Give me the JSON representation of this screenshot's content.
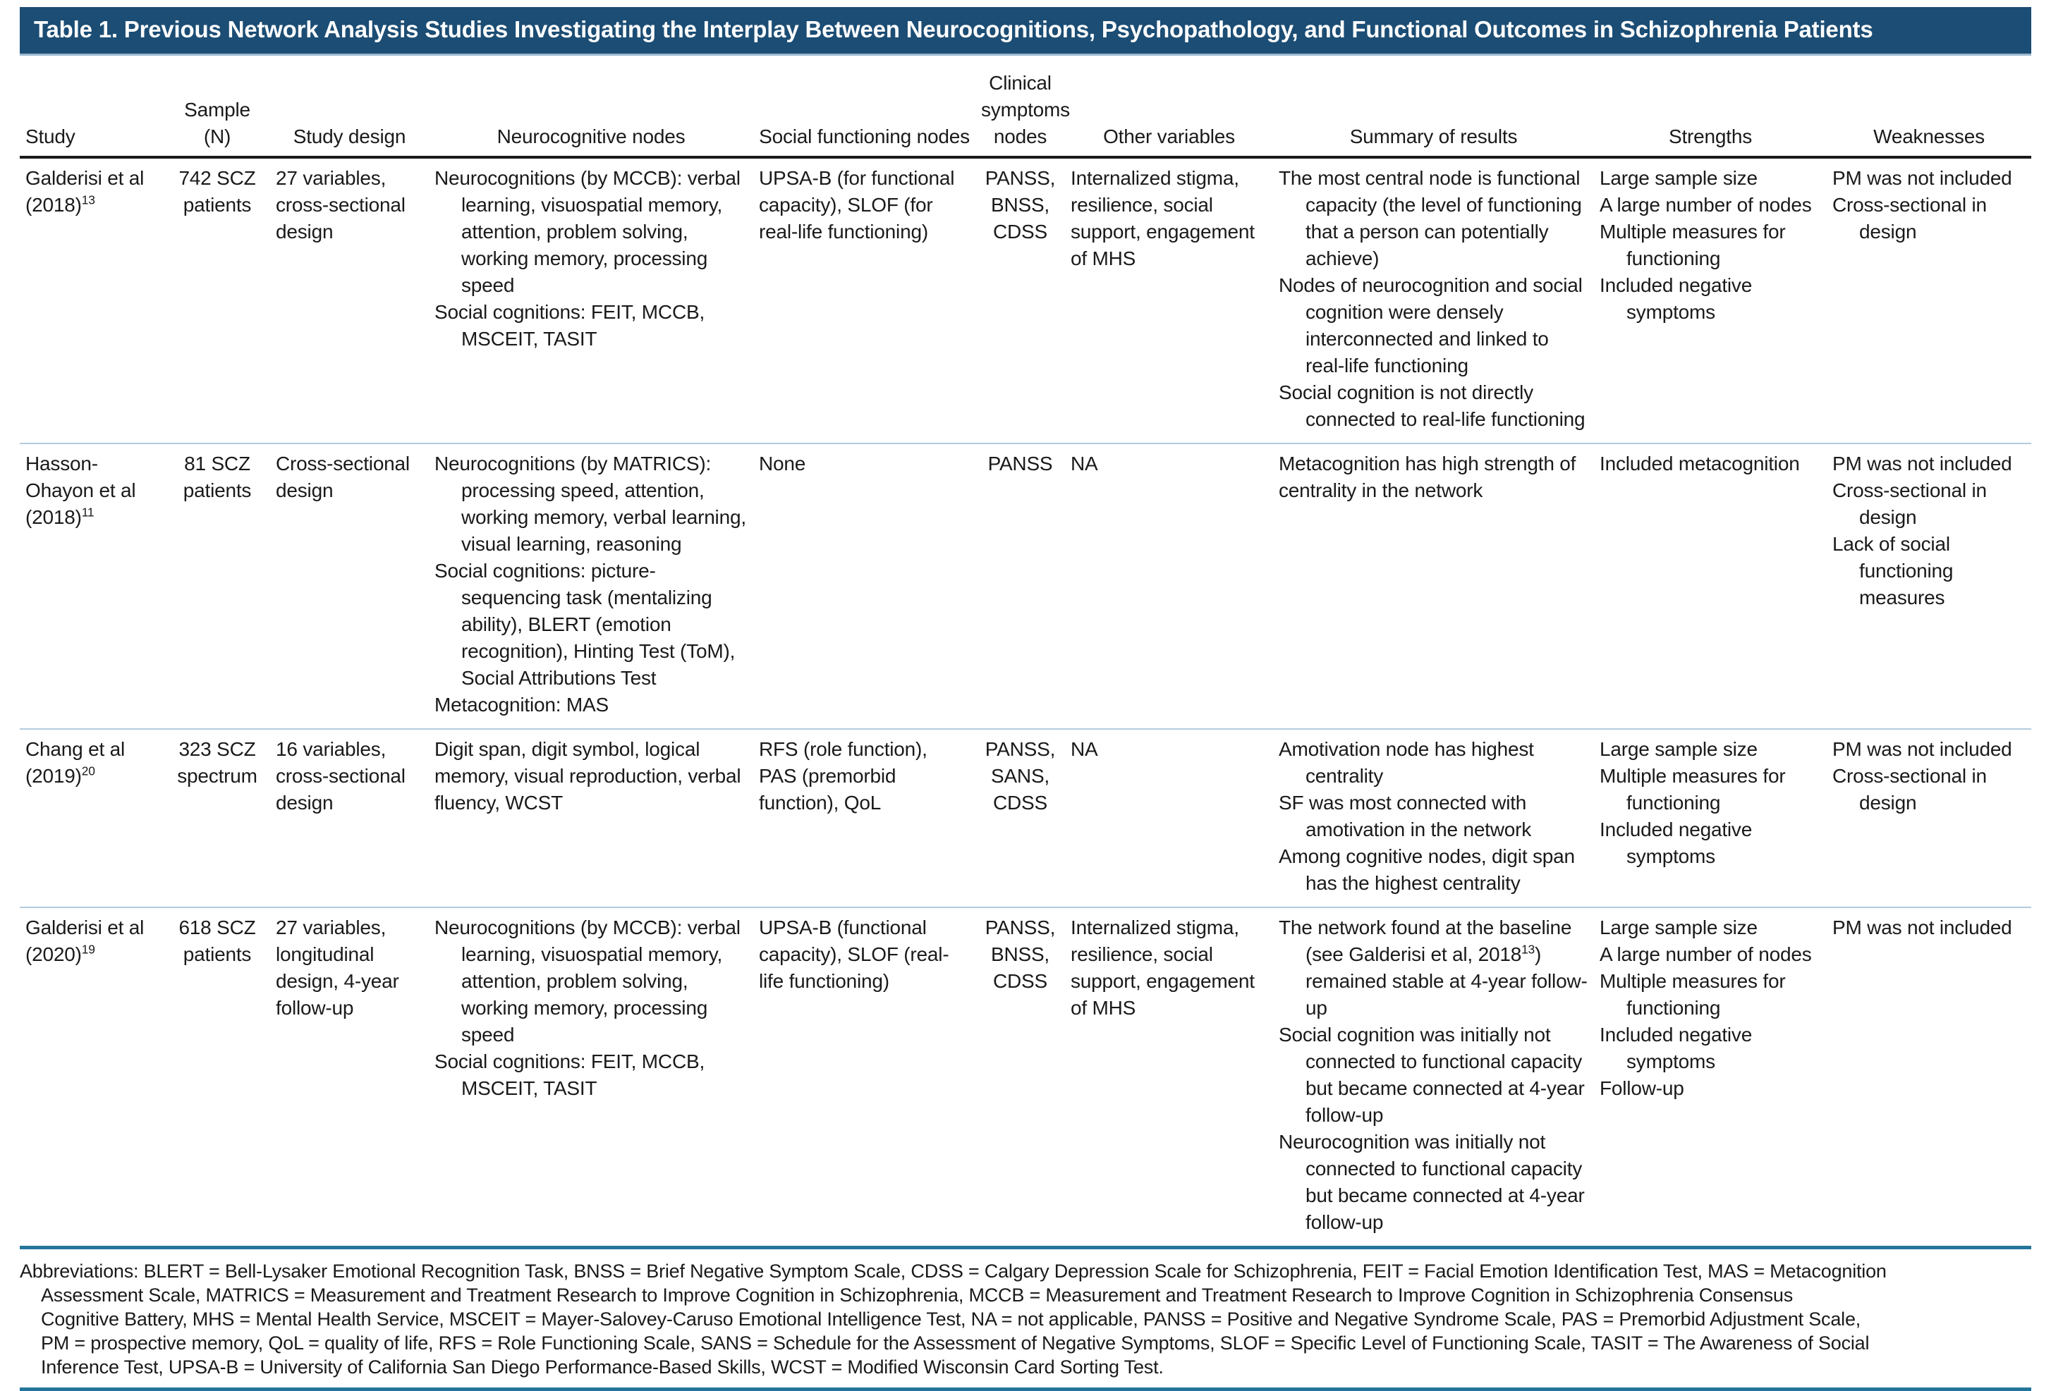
{
  "title": "Table 1. Previous Network Analysis Studies Investigating the Interplay Between Neurocognitions, Psychopathology, and Functional Outcomes in Schizophrenia Patients",
  "colors": {
    "title_bar_bg": "#1C4D74",
    "title_text": "#FFFFFF",
    "header_rule": "#1A1A1A",
    "row_rule": "#B3CBDF",
    "table_end_rule": "#24759C",
    "body_text": "#1A1A1A"
  },
  "columns": [
    {
      "label": "Study",
      "align": "left"
    },
    {
      "label": "Sample (N)",
      "align": "center"
    },
    {
      "label": "Study design",
      "align": "center"
    },
    {
      "label": "Neurocognitive nodes",
      "align": "center"
    },
    {
      "label": "Social functioning nodes",
      "align": "center"
    },
    {
      "label": "Clinical symptoms nodes",
      "align": "center"
    },
    {
      "label": "Other variables",
      "align": "center"
    },
    {
      "label": "Summary of results",
      "align": "center"
    },
    {
      "label": "Strengths",
      "align": "center"
    },
    {
      "label": "Weaknesses",
      "align": "center"
    }
  ],
  "rows": [
    {
      "cells": [
        {
          "items": [
            "Galderisi et al",
            "(2018)^{13}"
          ]
        },
        {
          "items": [
            "742 SCZ patients"
          ],
          "align": "center"
        },
        {
          "items": [
            "27 variables, cross-sectional design"
          ]
        },
        {
          "items": [
            "Neurocognitions (by MCCB): verbal learning, visuospatial memory, attention, problem solving, working memory, processing speed",
            "Social cognitions: FEIT, MCCB, MSCEIT, TASIT"
          ],
          "hang": true
        },
        {
          "items": [
            "UPSA-B (for functional capacity), SLOF (for real-life functioning)"
          ]
        },
        {
          "items": [
            "PANSS, BNSS, CDSS"
          ],
          "align": "center"
        },
        {
          "items": [
            "Internalized stigma, resilience, social support, engagement of MHS"
          ]
        },
        {
          "items": [
            "The most central node is functional capacity (the level of functioning that a person can potentially achieve)",
            "Nodes of neurocognition and social cognition were densely interconnected and linked to real-life functioning",
            "Social cognition is not directly connected to real-life functioning"
          ],
          "hang": true
        },
        {
          "items": [
            "Large sample size",
            "A large number of nodes",
            "Multiple measures for functioning",
            "Included negative symptoms"
          ],
          "hang": true
        },
        {
          "items": [
            "PM was not included",
            "Cross-sectional in design"
          ],
          "hang": true
        }
      ]
    },
    {
      "cells": [
        {
          "items": [
            "Hasson-",
            "Ohayon et al",
            "(2018)^{11}"
          ]
        },
        {
          "items": [
            "81 SCZ patients"
          ],
          "align": "center"
        },
        {
          "items": [
            "Cross-sectional design"
          ]
        },
        {
          "items": [
            "Neurocognitions (by MATRICS): processing speed, attention, working memory, verbal learning, visual learning, reasoning",
            "Social cognitions: picture-sequencing task (mentalizing ability), BLERT (emotion recognition), Hinting Test (ToM), Social Attributions Test",
            "Metacognition: MAS"
          ],
          "hang": true
        },
        {
          "items": [
            "None"
          ]
        },
        {
          "items": [
            "PANSS"
          ],
          "align": "center"
        },
        {
          "items": [
            "NA"
          ]
        },
        {
          "items": [
            "Metacognition has high strength of centrality in the network"
          ]
        },
        {
          "items": [
            "Included metacognition"
          ]
        },
        {
          "items": [
            "PM was not included",
            "Cross-sectional in design",
            "Lack of social functioning measures"
          ],
          "hang": true
        }
      ]
    },
    {
      "cells": [
        {
          "items": [
            "Chang et al",
            "(2019)^{20}"
          ]
        },
        {
          "items": [
            "323 SCZ spectrum"
          ],
          "align": "center"
        },
        {
          "items": [
            "16 variables, cross-sectional design"
          ]
        },
        {
          "items": [
            "Digit span, digit symbol, logical memory, visual reproduction, verbal fluency, WCST"
          ]
        },
        {
          "items": [
            "RFS (role function), PAS (premorbid function), QoL"
          ]
        },
        {
          "items": [
            "PANSS, SANS, CDSS"
          ],
          "align": "center"
        },
        {
          "items": [
            "NA"
          ]
        },
        {
          "items": [
            "Amotivation node has highest centrality",
            "SF was most connected with amotivation in the network",
            "Among cognitive nodes, digit span has the highest centrality"
          ],
          "hang": true
        },
        {
          "items": [
            "Large sample size",
            "Multiple measures for functioning",
            "Included negative symptoms"
          ],
          "hang": true
        },
        {
          "items": [
            "PM was not included",
            "Cross-sectional in design"
          ],
          "hang": true
        }
      ]
    },
    {
      "cells": [
        {
          "items": [
            "Galderisi et al",
            "(2020)^{19}"
          ]
        },
        {
          "items": [
            "618 SCZ patients"
          ],
          "align": "center"
        },
        {
          "items": [
            "27 variables, longitudinal design, 4-year follow-up"
          ]
        },
        {
          "items": [
            "Neurocognitions (by MCCB): verbal learning, visuospatial memory, attention, problem solving, working memory, processing speed",
            "Social cognitions: FEIT, MCCB, MSCEIT, TASIT"
          ],
          "hang": true
        },
        {
          "items": [
            "UPSA-B (functional capacity), SLOF (real-life functioning)"
          ]
        },
        {
          "items": [
            "PANSS, BNSS, CDSS"
          ],
          "align": "center"
        },
        {
          "items": [
            "Internalized stigma, resilience, social support, engagement of MHS"
          ]
        },
        {
          "items": [
            "The network found at the baseline (see Galderisi et al, 2018^{13}) remained stable at 4-year follow-up",
            "Social cognition was initially not connected to functional capacity but became connected at 4-year follow-up",
            "Neurocognition was initially not connected to functional capacity but became connected at 4-year follow-up"
          ],
          "hang": true
        },
        {
          "items": [
            "Large sample size",
            "A large number of nodes",
            "Multiple measures for functioning",
            "Included negative symptoms",
            "Follow-up"
          ],
          "hang": true
        },
        {
          "items": [
            "PM was not included"
          ],
          "hang": true
        }
      ]
    }
  ],
  "footnote_lines": [
    "Abbreviations: BLERT = Bell-Lysaker Emotional Recognition Task, BNSS = Brief Negative Symptom Scale, CDSS = Calgary Depression Scale for Schizophrenia, FEIT = Facial Emotion Identification Test, MAS = Metacognition",
    "Assessment Scale, MATRICS = Measurement and Treatment Research to Improve Cognition in Schizophrenia, MCCB = Measurement and Treatment Research to Improve Cognition in Schizophrenia Consensus",
    "Cognitive Battery, MHS = Mental Health Service, MSCEIT = Mayer-Salovey-Caruso Emotional Intelligence Test, NA = not applicable, PANSS = Positive and Negative Syndrome Scale, PAS = Premorbid Adjustment Scale,",
    "PM = prospective memory, QoL = quality of life, RFS = Role Functioning Scale, SANS = Schedule for the Assessment of Negative Symptoms, SLOF = Specific Level of Functioning Scale, TASIT = The Awareness of Social",
    "Inference Test, UPSA-B = University of California San Diego Performance-Based Skills, WCST = Modified Wisconsin Card Sorting Test."
  ]
}
